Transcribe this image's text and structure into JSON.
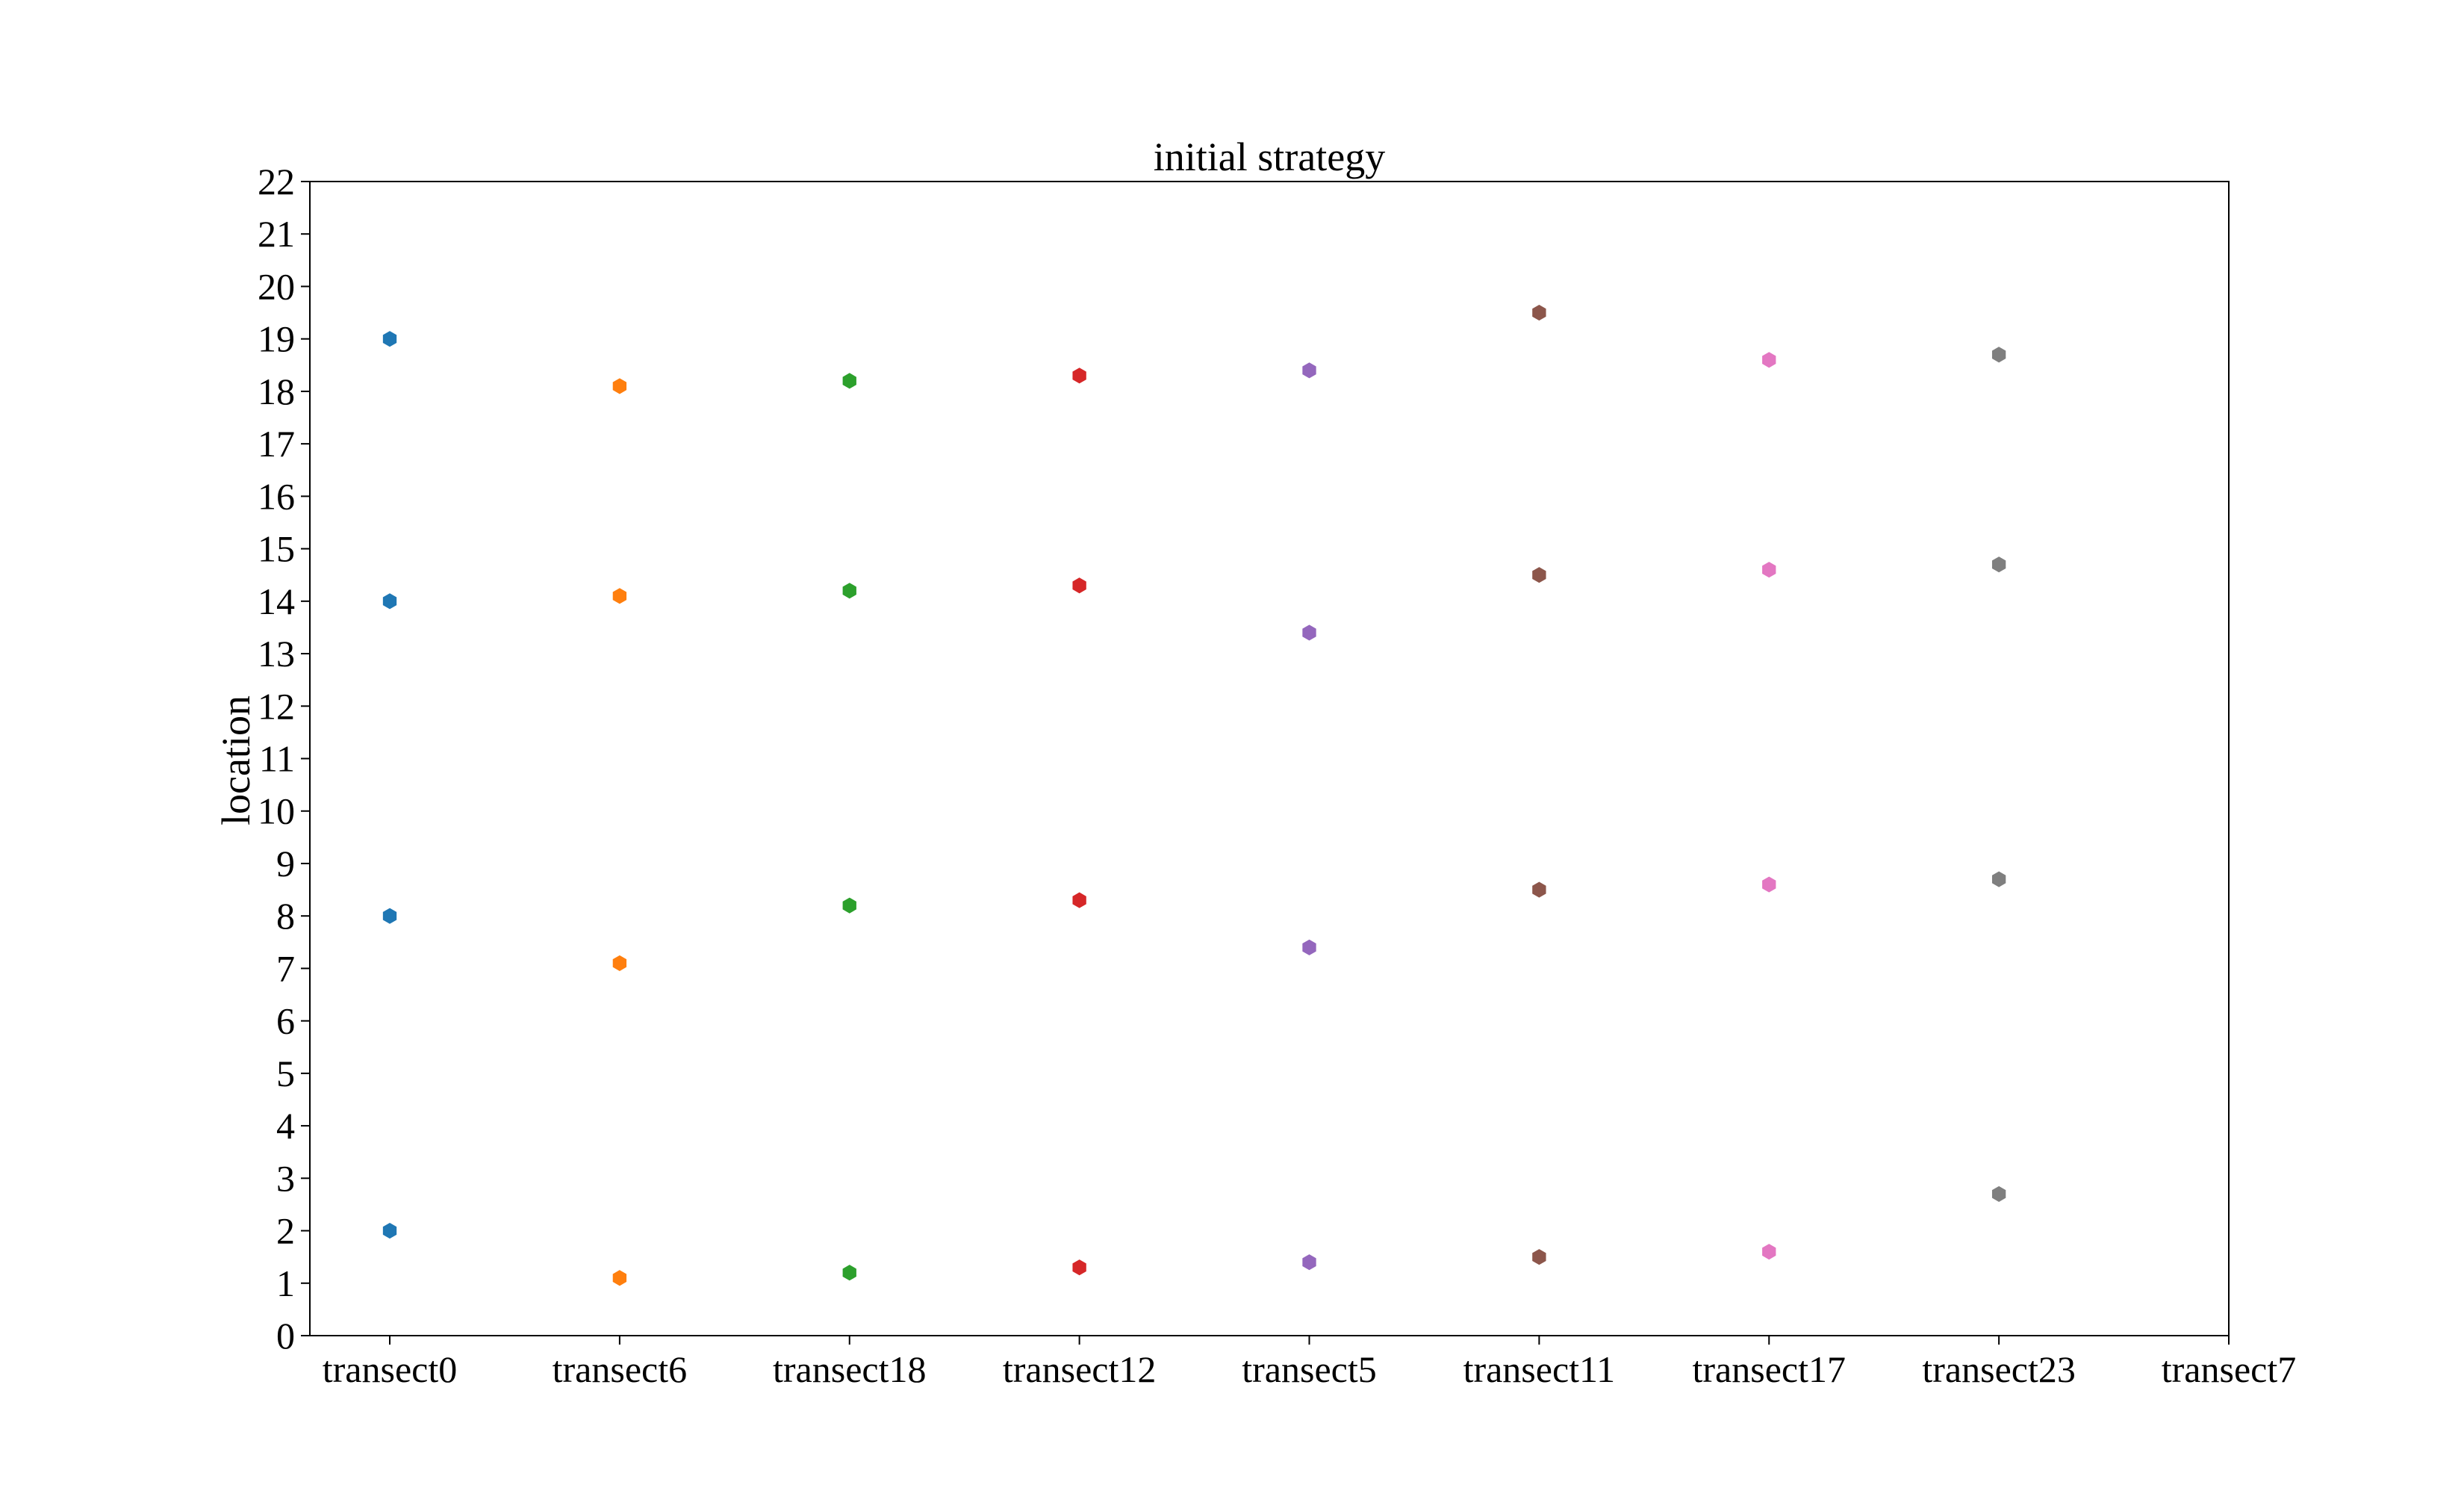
{
  "chart_data": {
    "type": "scatter",
    "title": "initial strategy",
    "xlabel": "",
    "ylabel": "location",
    "ylim": [
      0,
      22
    ],
    "yticks": [
      0,
      1,
      2,
      3,
      4,
      5,
      6,
      7,
      8,
      9,
      10,
      11,
      12,
      13,
      14,
      15,
      16,
      17,
      18,
      19,
      20,
      21,
      22
    ],
    "categories": [
      "transect0",
      "transect6",
      "transect18",
      "transect12",
      "transect5",
      "transect11",
      "transect17",
      "transect23",
      "transect7"
    ],
    "grid": false,
    "legend": "none",
    "marker": "hexagon",
    "series": [
      {
        "category": "transect0",
        "color": "#1f77b4",
        "values": [
          19,
          14,
          8,
          2
        ]
      },
      {
        "category": "transect6",
        "color": "#ff7f0e",
        "values": [
          18.1,
          14.1,
          7.1,
          1.1
        ]
      },
      {
        "category": "transect18",
        "color": "#2ca02c",
        "values": [
          18.2,
          14.2,
          8.2,
          1.2
        ]
      },
      {
        "category": "transect12",
        "color": "#d62728",
        "values": [
          18.3,
          14.3,
          8.3,
          1.3
        ]
      },
      {
        "category": "transect5",
        "color": "#9467bd",
        "values": [
          18.4,
          13.4,
          7.4,
          1.4
        ]
      },
      {
        "category": "transect11",
        "color": "#8c564b",
        "values": [
          19.5,
          14.5,
          8.5,
          1.5
        ]
      },
      {
        "category": "transect17",
        "color": "#e377c2",
        "values": [
          18.6,
          14.6,
          8.6,
          1.6
        ]
      },
      {
        "category": "transect23",
        "color": "#7f7f7f",
        "values": [
          18.7,
          14.7,
          8.7,
          2.7
        ]
      }
    ]
  }
}
